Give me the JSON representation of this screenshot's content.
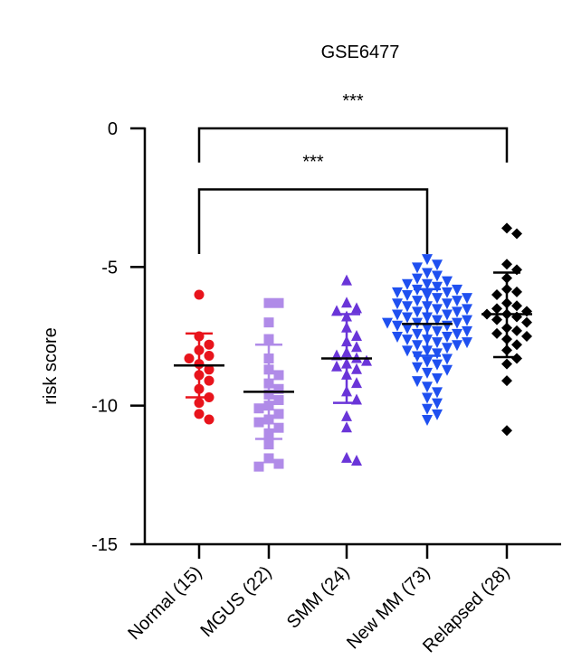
{
  "chart_data": {
    "type": "scatter",
    "title": "GSE6477",
    "ylabel": "risk score",
    "xlabel": "",
    "ylim": [
      -15,
      0
    ],
    "yticks": [
      0,
      -5,
      -10,
      -15
    ],
    "categories": [
      "Normal (15)",
      "MGUS (22)",
      "SMM (24)",
      "New MM (73)",
      "Relapsed (28)"
    ],
    "series": [
      {
        "color": "#e8141c",
        "marker": "circle",
        "mean": -8.55,
        "sd_upper": -7.4,
        "sd_lower": -9.7,
        "values": [
          -6.0,
          -7.5,
          -7.8,
          -8.0,
          -8.2,
          -8.3,
          -8.5,
          -8.7,
          -8.9,
          -9.1,
          -9.4,
          -9.7,
          -9.9,
          -10.3,
          -10.5
        ]
      },
      {
        "color": "#b08be8",
        "marker": "square",
        "mean": -9.5,
        "sd_upper": -7.8,
        "sd_lower": -11.2,
        "values": [
          -6.3,
          -6.3,
          -7.0,
          -7.6,
          -8.3,
          -8.7,
          -8.9,
          -9.2,
          -9.4,
          -9.6,
          -9.8,
          -10.0,
          -10.1,
          -10.3,
          -10.5,
          -10.6,
          -10.8,
          -11.0,
          -11.4,
          -11.9,
          -12.1,
          -12.2
        ]
      },
      {
        "color": "#6a35d8",
        "marker": "triangle-up",
        "mean": -8.3,
        "sd_upper": -6.7,
        "sd_lower": -9.9,
        "values": [
          -5.5,
          -6.3,
          -6.5,
          -6.6,
          -6.8,
          -7.2,
          -7.5,
          -7.7,
          -7.9,
          -8.1,
          -8.2,
          -8.3,
          -8.4,
          -8.5,
          -8.6,
          -8.7,
          -8.9,
          -9.2,
          -9.5,
          -9.8,
          -10.4,
          -10.8,
          -11.9,
          -12.0
        ]
      },
      {
        "color": "#1f50f0",
        "marker": "triangle-down",
        "mean": -7.05,
        "sd_upper": -5.8,
        "sd_lower": -8.2,
        "values": [
          -4.7,
          -4.9,
          -5.0,
          -5.2,
          -5.3,
          -5.4,
          -5.5,
          -5.6,
          -5.6,
          -5.7,
          -5.8,
          -5.8,
          -5.9,
          -5.9,
          -6.0,
          -6.0,
          -6.1,
          -6.1,
          -6.2,
          -6.2,
          -6.3,
          -6.3,
          -6.4,
          -6.4,
          -6.5,
          -6.5,
          -6.6,
          -6.6,
          -6.7,
          -6.7,
          -6.8,
          -6.8,
          -6.9,
          -6.9,
          -7.0,
          -7.0,
          -7.0,
          -7.1,
          -7.1,
          -7.2,
          -7.2,
          -7.3,
          -7.3,
          -7.4,
          -7.4,
          -7.5,
          -7.5,
          -7.6,
          -7.6,
          -7.7,
          -7.7,
          -7.8,
          -7.8,
          -7.9,
          -8.0,
          -8.0,
          -8.1,
          -8.2,
          -8.3,
          -8.4,
          -8.5,
          -8.6,
          -8.7,
          -8.8,
          -9.0,
          -9.1,
          -9.3,
          -9.5,
          -9.7,
          -9.9,
          -10.1,
          -10.3,
          -10.5
        ]
      },
      {
        "color": "#000000",
        "marker": "diamond",
        "mean": -6.7,
        "sd_upper": -5.2,
        "sd_lower": -8.25,
        "values": [
          -3.6,
          -3.8,
          -4.9,
          -5.1,
          -5.4,
          -5.8,
          -5.9,
          -6.0,
          -6.3,
          -6.4,
          -6.5,
          -6.6,
          -6.7,
          -6.7,
          -6.8,
          -6.9,
          -7.0,
          -7.2,
          -7.3,
          -7.4,
          -7.5,
          -7.6,
          -7.8,
          -8.0,
          -8.3,
          -8.5,
          -9.1,
          -10.9
        ]
      }
    ],
    "annotations": [
      {
        "from": 0,
        "to": 4,
        "y": 0.0,
        "tick_bottom": -1.2,
        "label": "***"
      },
      {
        "from": 0,
        "to": 3,
        "y": -2.2,
        "tick_bottom": -4.5,
        "label": "***"
      }
    ]
  }
}
